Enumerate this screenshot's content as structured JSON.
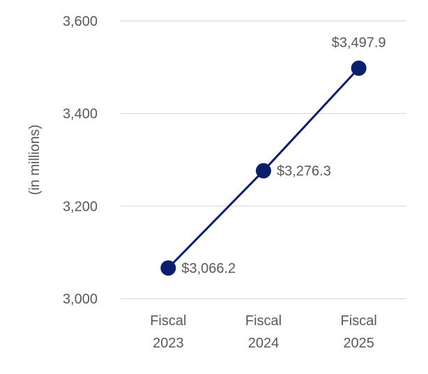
{
  "chart_data": {
    "type": "line",
    "categories": [
      [
        "Fiscal",
        "2023"
      ],
      [
        "Fiscal",
        "2024"
      ],
      [
        "Fiscal",
        "2025"
      ]
    ],
    "series": [
      {
        "values": [
          3066.2,
          3276.3,
          3497.9
        ],
        "labels": [
          "$3,066.2",
          "$3,276.3",
          "$3,497.9"
        ],
        "color": "#0a1f6e"
      }
    ],
    "ylabel": "(in millions)",
    "ylim": [
      3000,
      3600
    ],
    "yticks": [
      3000,
      3200,
      3400,
      3600
    ],
    "ytick_labels": [
      "3,000",
      "3,200",
      "3,400",
      "3,600"
    ],
    "grid": true,
    "legend": "none"
  }
}
